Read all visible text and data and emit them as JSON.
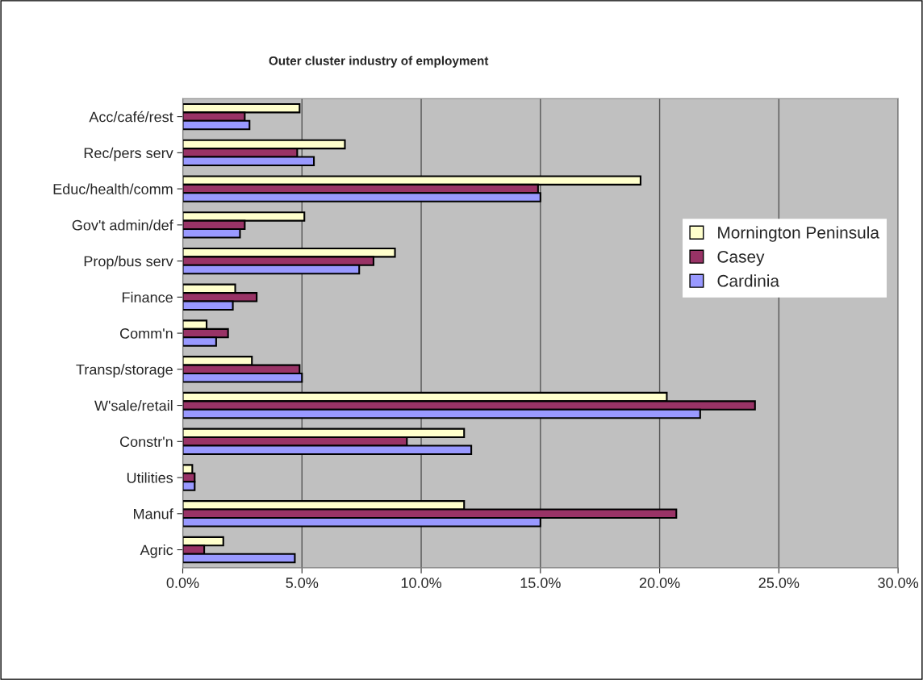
{
  "chart_data": {
    "type": "bar",
    "orientation": "horizontal",
    "title": "Outer cluster industry of employment",
    "categories": [
      "Acc/café/rest",
      "Rec/pers serv",
      "Educ/health/comm",
      "Gov't admin/def",
      "Prop/bus serv",
      "Finance",
      "Comm'n",
      "Transp/storage",
      "W'sale/retail",
      "Constr'n",
      "Utilities",
      "Manuf",
      "Agric"
    ],
    "series": [
      {
        "name": "Mornington Peninsula",
        "color": "#ffffcc",
        "values": [
          4.9,
          6.8,
          19.2,
          5.1,
          8.9,
          2.2,
          1.0,
          2.9,
          20.3,
          11.8,
          0.4,
          11.8,
          1.7
        ]
      },
      {
        "name": "Casey",
        "color": "#993366",
        "values": [
          2.6,
          4.8,
          14.9,
          2.6,
          8.0,
          3.1,
          1.9,
          4.9,
          24.0,
          9.4,
          0.5,
          20.7,
          0.9
        ]
      },
      {
        "name": "Cardinia",
        "color": "#9999ff",
        "values": [
          2.8,
          5.5,
          15.0,
          2.4,
          7.4,
          2.1,
          1.4,
          5.0,
          21.7,
          12.1,
          0.5,
          15.0,
          4.7
        ]
      }
    ],
    "xlim": [
      0,
      30
    ],
    "xticks": [
      {
        "value": 0,
        "label": "0.0%"
      },
      {
        "value": 5,
        "label": "5.0%"
      },
      {
        "value": 10,
        "label": "10.0%"
      },
      {
        "value": 15,
        "label": "15.0%"
      },
      {
        "value": 20,
        "label": "20.0%"
      },
      {
        "value": 25,
        "label": "25.0%"
      },
      {
        "value": 30,
        "label": "30.0%"
      }
    ],
    "grid": "x",
    "legend": "right"
  }
}
